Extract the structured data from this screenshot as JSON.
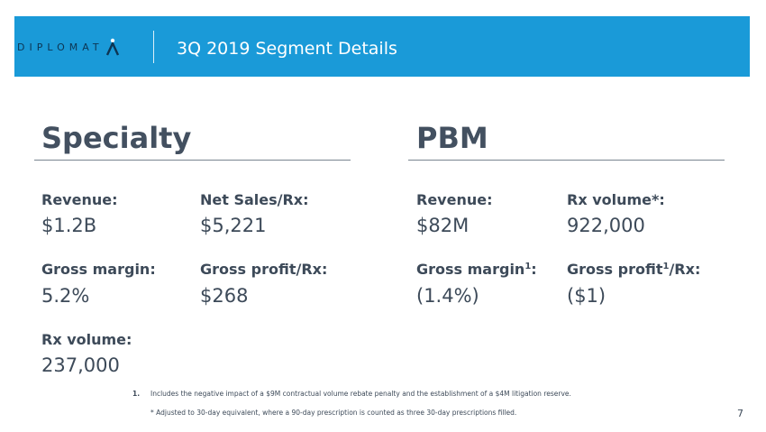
{
  "header": {
    "logo_text": "DIPLOMAT",
    "logo_icon": "diplomat-a-icon",
    "title": "3Q 2019 Segment Details",
    "banner_color": "#1a9ad8"
  },
  "specialty": {
    "title": "Specialty",
    "revenue_label": "Revenue:",
    "revenue_value": "$1.2B",
    "net_sales_label": "Net Sales/Rx:",
    "net_sales_value": "$5,221",
    "gross_margin_label": "Gross margin:",
    "gross_margin_value": "5.2%",
    "gross_profit_label": "Gross profit/Rx:",
    "gross_profit_value": "$268",
    "rx_volume_label": "Rx volume:",
    "rx_volume_value": "237,000"
  },
  "pbm": {
    "title": "PBM",
    "revenue_label": "Revenue:",
    "revenue_value": "$82M",
    "rx_volume_label": "Rx volume*:",
    "rx_volume_value": "922,000",
    "gross_margin_label_prefix": "Gross margin",
    "gross_margin_sup": "1",
    "gross_margin_label_suffix": ":",
    "gross_margin_value": "(1.4%)",
    "gross_profit_label_prefix": "Gross profit",
    "gross_profit_sup": "1",
    "gross_profit_label_suffix": "/Rx:",
    "gross_profit_value": "($1)"
  },
  "footnotes": {
    "note1_number": "1.",
    "note1_text": "Includes the negative impact of a $9M contractual volume rebate penalty and the establishment of a $4M litigation reserve.",
    "note2_text": "* Adjusted to 30-day equivalent, where a 90-day prescription is counted as three 30-day prescriptions filled."
  },
  "page_number": "7"
}
